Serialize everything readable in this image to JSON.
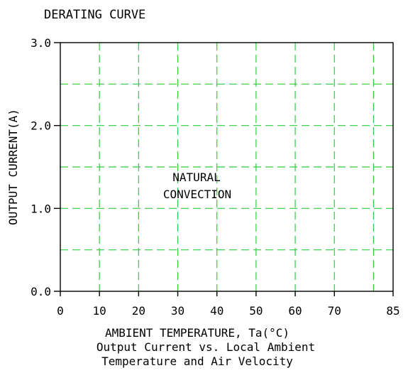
{
  "chart_data": {
    "type": "line",
    "title": "DERATING CURVE",
    "xlabel": "AMBIENT TEMPERATURE, Ta(°C)",
    "ylabel": "OUTPUT CURRENT(A)",
    "caption": [
      "Output Current vs. Local Ambient",
      "Temperature and Air Velocity"
    ],
    "annotation": [
      "NATURAL",
      "CONVECTION"
    ],
    "xlim": [
      0,
      85
    ],
    "ylim": [
      0,
      3.0
    ],
    "x_ticks": [
      0,
      10,
      20,
      30,
      40,
      50,
      60,
      70,
      85
    ],
    "x_tick_labels": [
      "0",
      "10",
      "20",
      "30",
      "40",
      "50",
      "60",
      "70",
      "85"
    ],
    "y_ticks": [
      0,
      1.0,
      2.0,
      3.0
    ],
    "y_tick_labels": [
      "0.0",
      "1.0",
      "2.0",
      "3.0"
    ],
    "x_grid": [
      10,
      20,
      30,
      40,
      50,
      60,
      70,
      80
    ],
    "y_grid": [
      0.5,
      1.0,
      1.5,
      2.0,
      2.5
    ],
    "grid": true,
    "grid_color": "#2ecc40",
    "series": []
  }
}
